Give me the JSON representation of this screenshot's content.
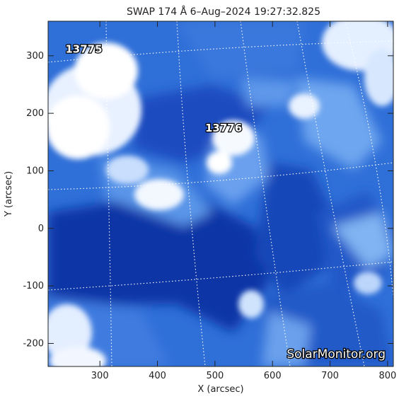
{
  "title": "SWAP 174 Å  6–Aug–2024 19:27:32.825",
  "xlabel": "X (arcsec)",
  "ylabel": "Y (arcsec)",
  "xaxis": {
    "min": 210,
    "max": 810,
    "ticks": [
      300,
      400,
      500,
      600,
      700,
      800
    ]
  },
  "yaxis": {
    "min": -240,
    "max": 360,
    "ticks": [
      -200,
      -100,
      0,
      100,
      200,
      300
    ]
  },
  "active_regions": [
    {
      "label": "13775",
      "x": 272,
      "y": 305
    },
    {
      "label": "13776",
      "x": 515,
      "y": 168
    }
  ],
  "watermark": "SolarMonitor.org",
  "colors": {
    "image_dark": "#0b3aa8",
    "image_mid": "#3a7ae0",
    "image_light": "#bcd8fb",
    "grid": "#ffffff"
  }
}
